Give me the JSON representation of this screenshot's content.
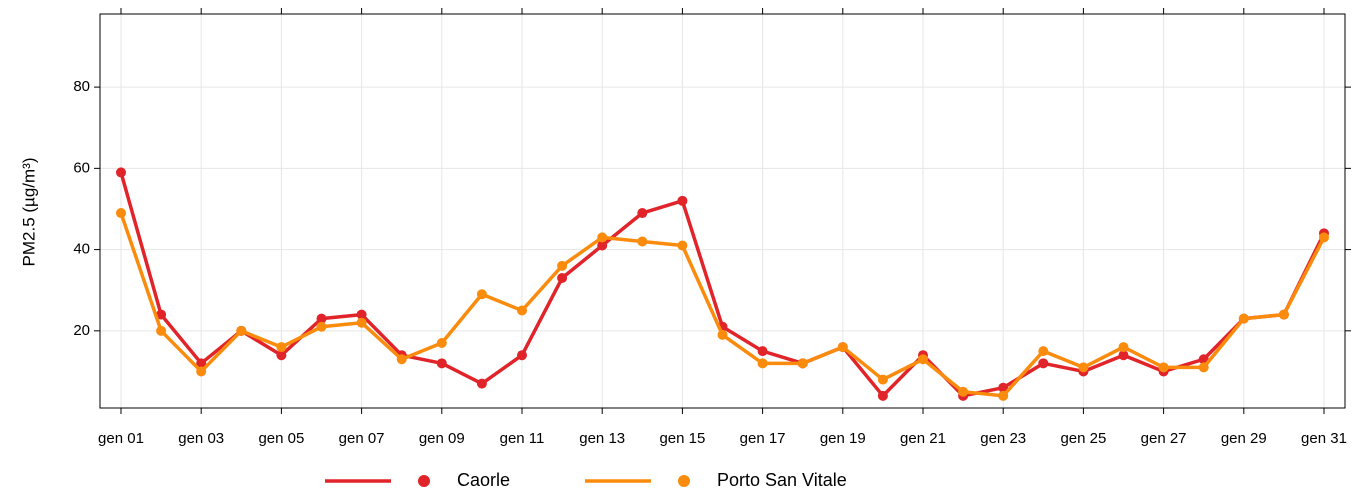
{
  "chart_data": {
    "type": "line",
    "y_label": "PM2.5 (µg/m³)",
    "categories": [
      "gen 01",
      null,
      "gen 03",
      null,
      "gen 05",
      null,
      "gen 07",
      null,
      "gen 09",
      null,
      "gen 11",
      null,
      "gen 13",
      null,
      "gen 15",
      null,
      "gen 17",
      null,
      "gen 19",
      null,
      "gen 21",
      null,
      "gen 23",
      null,
      "gen 25",
      null,
      "gen 27",
      null,
      "gen 29",
      null,
      "gen 31"
    ],
    "series": [
      {
        "name": "Caorle",
        "color": "#e0242a",
        "values": [
          59,
          24,
          12,
          20,
          14,
          23,
          24,
          14,
          12,
          7,
          14,
          33,
          41,
          49,
          52,
          21,
          15,
          12,
          16,
          4,
          14,
          4,
          6,
          12,
          10,
          14,
          10,
          13,
          23,
          24,
          44
        ]
      },
      {
        "name": "Porto San Vitale",
        "color": "#fb8b0c",
        "values": [
          49,
          20,
          10,
          20,
          16,
          21,
          22,
          13,
          17,
          29,
          25,
          36,
          43,
          42,
          41,
          19,
          12,
          12,
          16,
          8,
          13,
          5,
          4,
          15,
          11,
          16,
          11,
          11,
          23,
          24,
          43
        ]
      }
    ],
    "ylim": [
      1,
      98
    ],
    "yticks": [
      20,
      40,
      60,
      80
    ],
    "grid": true,
    "legend": "bottom"
  }
}
